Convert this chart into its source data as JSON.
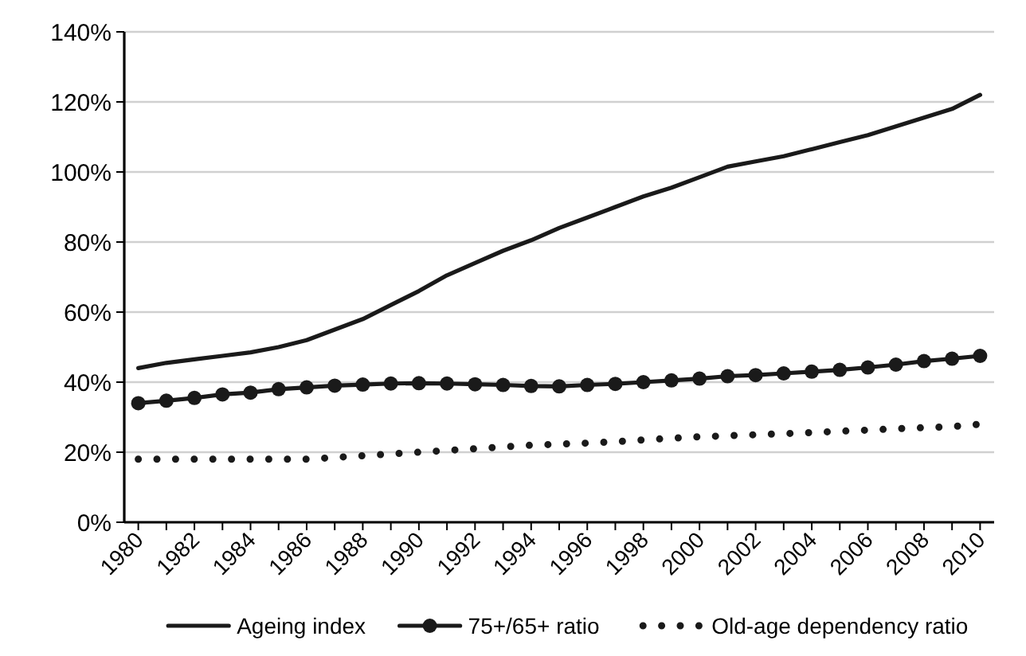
{
  "chart_data": {
    "type": "line",
    "categories": [
      "1980",
      null,
      "1982",
      null,
      "1984",
      null,
      "1986",
      null,
      "1988",
      null,
      "1990",
      null,
      "1992",
      null,
      "1994",
      null,
      "1996",
      null,
      "1998",
      null,
      "2000",
      null,
      "2002",
      null,
      "2004",
      null,
      "2006",
      null,
      "2008",
      null,
      "2010"
    ],
    "ylim": [
      0,
      140
    ],
    "yticks": [
      {
        "value": 0,
        "label": "0%"
      },
      {
        "value": 20,
        "label": "20%"
      },
      {
        "value": 40,
        "label": "40%"
      },
      {
        "value": 60,
        "label": "60%"
      },
      {
        "value": 80,
        "label": "80%"
      },
      {
        "value": 100,
        "label": "100%"
      },
      {
        "value": 120,
        "label": "120%"
      },
      {
        "value": 140,
        "label": "140%"
      }
    ],
    "grid": "y",
    "legend": "bottom",
    "series": [
      {
        "name": "Ageing index",
        "color": "#1a1a1a",
        "marker": "none",
        "line_style": "solid",
        "values": [
          44,
          45.5,
          46.5,
          47.5,
          48.5,
          50,
          52,
          55,
          58,
          62,
          66,
          70.5,
          74,
          77.5,
          80.5,
          84,
          87,
          90,
          93,
          95.5,
          98.5,
          101.5,
          103,
          104.5,
          106.5,
          108.5,
          110.5,
          113,
          115.5,
          118,
          122
        ]
      },
      {
        "name": "75+/65+ ratio",
        "color": "#1a1a1a",
        "marker": "circle",
        "line_style": "solid",
        "values": [
          34,
          34.7,
          35.5,
          36.5,
          37,
          38,
          38.5,
          39,
          39.3,
          39.6,
          39.7,
          39.6,
          39.4,
          39.2,
          38.9,
          38.8,
          39.2,
          39.5,
          40,
          40.5,
          41,
          41.7,
          42,
          42.5,
          43,
          43.5,
          44.2,
          45,
          46,
          46.7,
          47.5
        ]
      },
      {
        "name": "Old-age dependency ratio",
        "color": "#1a1a1a",
        "marker": "none",
        "line_style": "dotted",
        "values": [
          18,
          18,
          18,
          18,
          18,
          18,
          18,
          18.5,
          19,
          19.5,
          20,
          20.5,
          21,
          21.5,
          22,
          22.3,
          22.6,
          23,
          23.5,
          24,
          24.4,
          24.7,
          25,
          25.3,
          25.6,
          26,
          26.3,
          26.7,
          27,
          27.3,
          28
        ]
      }
    ]
  }
}
